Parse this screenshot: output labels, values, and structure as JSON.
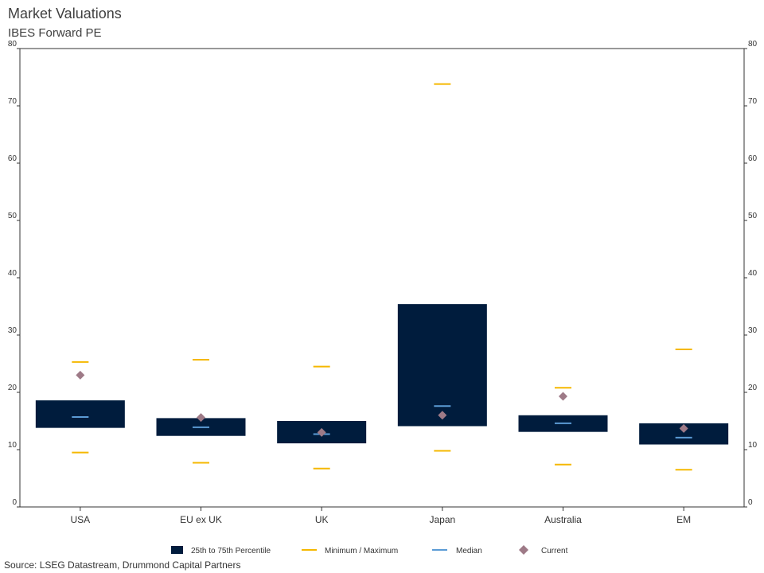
{
  "header": {
    "title": "Market Valuations",
    "subtitle": "IBES Forward PE"
  },
  "footer": {
    "source": "Source: LSEG Datastream, Drummond Capital Partners"
  },
  "colors": {
    "box": "#001c3d",
    "minmax": "#f5b800",
    "median": "#5b9bd5",
    "current": "#9e7a87",
    "axis": "#333333"
  },
  "chart_data": {
    "type": "box",
    "title": "Market Valuations",
    "subtitle": "IBES Forward PE",
    "ylim": [
      0,
      80
    ],
    "yticks": [
      0,
      10,
      20,
      30,
      40,
      50,
      60,
      70,
      80
    ],
    "categories": [
      "USA",
      "EU ex UK",
      "UK",
      "Japan",
      "Australia",
      "EM"
    ],
    "series": [
      {
        "name": "25th to 75th Percentile",
        "low": [
          13.8,
          12.4,
          11.1,
          14.1,
          13.1,
          10.9
        ],
        "high": [
          18.6,
          15.5,
          15.0,
          35.4,
          16.0,
          14.6
        ]
      },
      {
        "name": "Minimum / Maximum",
        "min": [
          9.5,
          7.7,
          6.7,
          9.8,
          7.4,
          6.5
        ],
        "max": [
          25.3,
          25.7,
          24.5,
          73.8,
          20.8,
          27.5
        ]
      },
      {
        "name": "Median",
        "values": [
          15.7,
          13.9,
          12.7,
          17.6,
          14.6,
          12.1
        ]
      },
      {
        "name": "Current",
        "values": [
          23.0,
          15.6,
          13.0,
          16.0,
          19.3,
          13.7
        ]
      }
    ],
    "legend": [
      "25th to 75th Percentile",
      "Minimum / Maximum",
      "Median",
      "Current"
    ],
    "legend_position": "bottom",
    "grid": false
  }
}
